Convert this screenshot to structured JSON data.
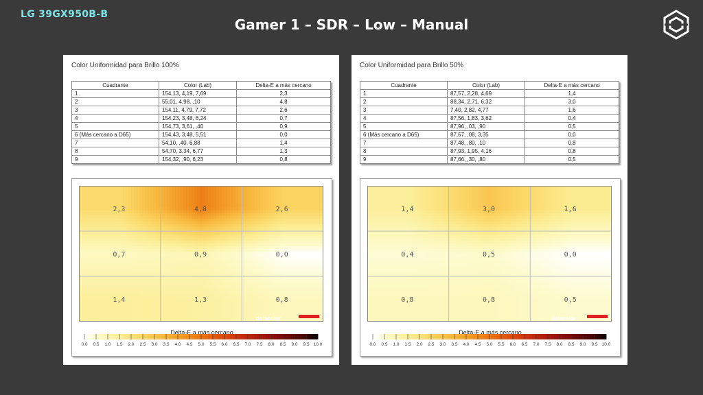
{
  "header": {
    "model": "LG 39GX950B-B",
    "title": "Gamer 1 – SDR – Low – Manual"
  },
  "icons": {
    "brand": "brand-logo-icon"
  },
  "panels": [
    {
      "title": "Color Uniformidad para Brillo 100%",
      "columns": [
        "Cuadrante",
        "Color (Lab)",
        "Delta-E a más cercano"
      ],
      "rows": [
        [
          "1",
          "154,13,   4,19,   7,69",
          "2,3"
        ],
        [
          "2",
          "55,01,   4,98,    ,10",
          "4,8"
        ],
        [
          "3",
          "154,11,   4,79,   7,72",
          "2,6"
        ],
        [
          "4",
          "154,23,   3,48,   6,24",
          "0,7"
        ],
        [
          "5",
          "154,73,   3,61,    ,40",
          "0,9"
        ],
        [
          "6 (Más cercano a D65)",
          "154,43,   3,48,   5,51",
          "0,0"
        ],
        [
          "7",
          "54,10,    ,40,   6,88",
          "1,4"
        ],
        [
          "8",
          "54,70,   3,34,   6,77",
          "1,3"
        ],
        [
          "9",
          "154,32,    ,90,   6,23",
          "0,8"
        ]
      ],
      "map_values": [
        "2,3",
        "4,8",
        "2,6",
        "0,7",
        "0,9",
        "0,0",
        "1,4",
        "1,3",
        "0,8"
      ],
      "scale_label": "Delta-E a más cercano",
      "watermark": "datacolor"
    },
    {
      "title": "Color Uniformidad para Brillo 50%",
      "columns": [
        "Cuadrante",
        "Color (Lab)",
        "Delta-E a más cercano"
      ],
      "rows": [
        [
          "1",
          "87,57,   2,28,   4,69",
          "1,4"
        ],
        [
          "2",
          "88,34,   2,71,   6,32",
          "3,0"
        ],
        [
          "3",
          "7,40,   2,82,   4,77",
          "1,6"
        ],
        [
          "4",
          "87,56,   1,83,   3,62",
          "0,4"
        ],
        [
          "5",
          "87,96,    ,03,    ,90",
          "0,5"
        ],
        [
          "6 (Más cercano a D65)",
          "87,67,    ,08,   3,35",
          "0,0"
        ],
        [
          "7",
          "87,48,    ,80,    ,10",
          "0,8"
        ],
        [
          "8",
          "87,93,   1,95,   4,16",
          "0,8"
        ],
        [
          "9",
          "87,66,    ,30,    ,80",
          "0,5"
        ]
      ],
      "map_values": [
        "1,4",
        "3,0",
        "1,6",
        "0,4",
        "0,5",
        "0,0",
        "0,8",
        "0,8",
        "0,5"
      ],
      "scale_label": "Delta-E a más cercano",
      "watermark": "datacolor"
    }
  ],
  "chart_data": [
    {
      "type": "heatmap",
      "title": "Color Uniformidad para Brillo 100%",
      "grid": [
        [
          2.3,
          4.8,
          2.6
        ],
        [
          0.7,
          0.9,
          0.0
        ],
        [
          1.4,
          1.3,
          0.8
        ]
      ],
      "scale_label": "Delta-E a más cercano",
      "scale_range": [
        0.0,
        10.0
      ],
      "scale_ticks": [
        "0.0",
        "0.5",
        "1.0",
        "1.5",
        "2.0",
        "2.5",
        "3.0",
        "3.5",
        "4.0",
        "4.5",
        "5.0",
        "5.5",
        "6.0",
        "6.5",
        "7.0",
        "7.5",
        "8.0",
        "8.5",
        "9.0",
        "9.5",
        "10.0"
      ]
    },
    {
      "type": "heatmap",
      "title": "Color Uniformidad para Brillo 50%",
      "grid": [
        [
          1.4,
          3.0,
          1.6
        ],
        [
          0.4,
          0.5,
          0.0
        ],
        [
          0.8,
          0.8,
          0.5
        ]
      ],
      "scale_label": "Delta-E a más cercano",
      "scale_range": [
        0.0,
        10.0
      ],
      "scale_ticks": [
        "0.0",
        "0.5",
        "1.0",
        "1.5",
        "2.0",
        "2.5",
        "3.0",
        "3.5",
        "4.0",
        "4.5",
        "5.0",
        "5.5",
        "6.0",
        "6.5",
        "7.0",
        "7.5",
        "8.0",
        "8.5",
        "9.0",
        "9.5",
        "10.0"
      ]
    }
  ],
  "colors": {
    "background": "#3a3a3a",
    "model_text": "#7fe3e6",
    "watermark_bar": "#e02020"
  }
}
